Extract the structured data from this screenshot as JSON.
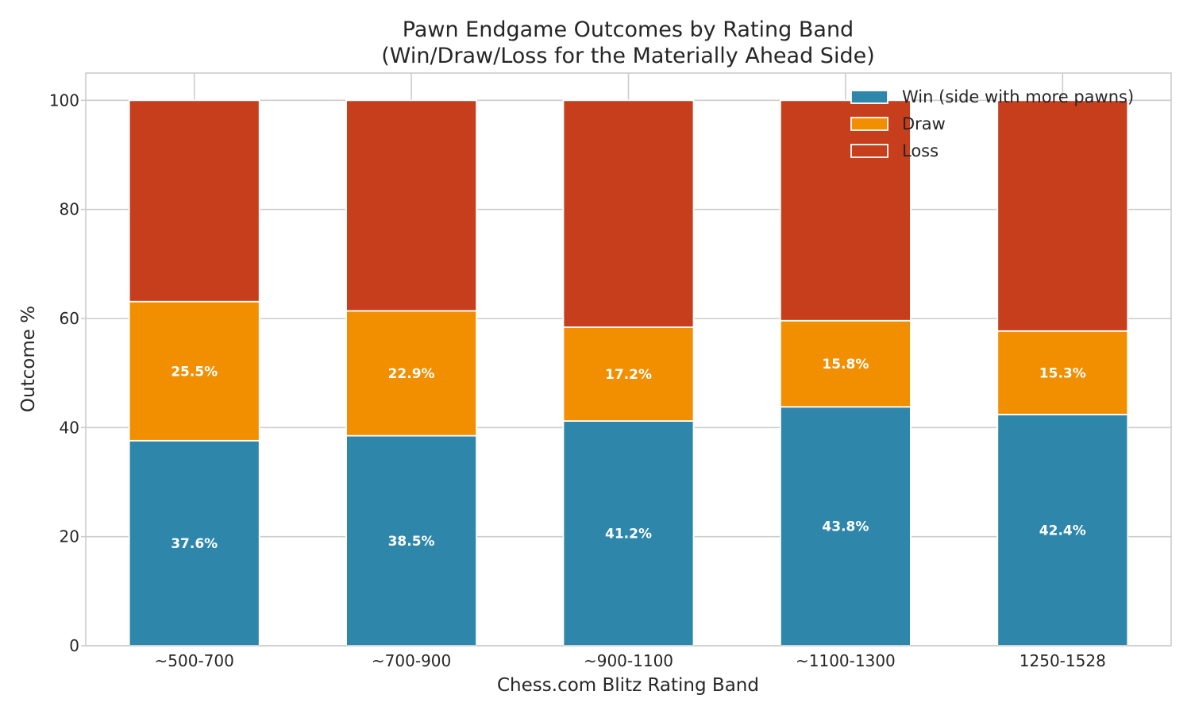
{
  "chart_data": {
    "type": "bar",
    "stacked": true,
    "title": "Pawn Endgame Outcomes by Rating Band",
    "subtitle": "(Win/Draw/Loss for the Materially Ahead Side)",
    "xlabel": "Chess.com Blitz Rating Band",
    "ylabel": "Outcome %",
    "categories": [
      "~500-700",
      "~700-900",
      "~900-1100",
      "~1100-1300",
      "1250-1528"
    ],
    "series": [
      {
        "name": "Win (side with more pawns)",
        "color": "#2e86ab",
        "values": [
          37.6,
          38.5,
          41.2,
          43.8,
          42.4
        ],
        "labels": [
          "37.6%",
          "38.5%",
          "41.2%",
          "43.8%",
          "42.4%"
        ]
      },
      {
        "name": "Draw",
        "color": "#f18f01",
        "values": [
          25.5,
          22.9,
          17.2,
          15.8,
          15.3
        ],
        "labels": [
          "25.5%",
          "22.9%",
          "17.2%",
          "15.8%",
          "15.3%"
        ]
      },
      {
        "name": "Loss",
        "color": "#c73e1d",
        "values": [
          36.9,
          38.6,
          41.6,
          40.4,
          42.3
        ],
        "labels": [
          "",
          "",
          "",
          "",
          ""
        ]
      }
    ],
    "ylim": [
      0,
      105
    ],
    "yticks": [
      0,
      20,
      40,
      60,
      80,
      100
    ],
    "grid": true,
    "legend_position": "top-right"
  }
}
